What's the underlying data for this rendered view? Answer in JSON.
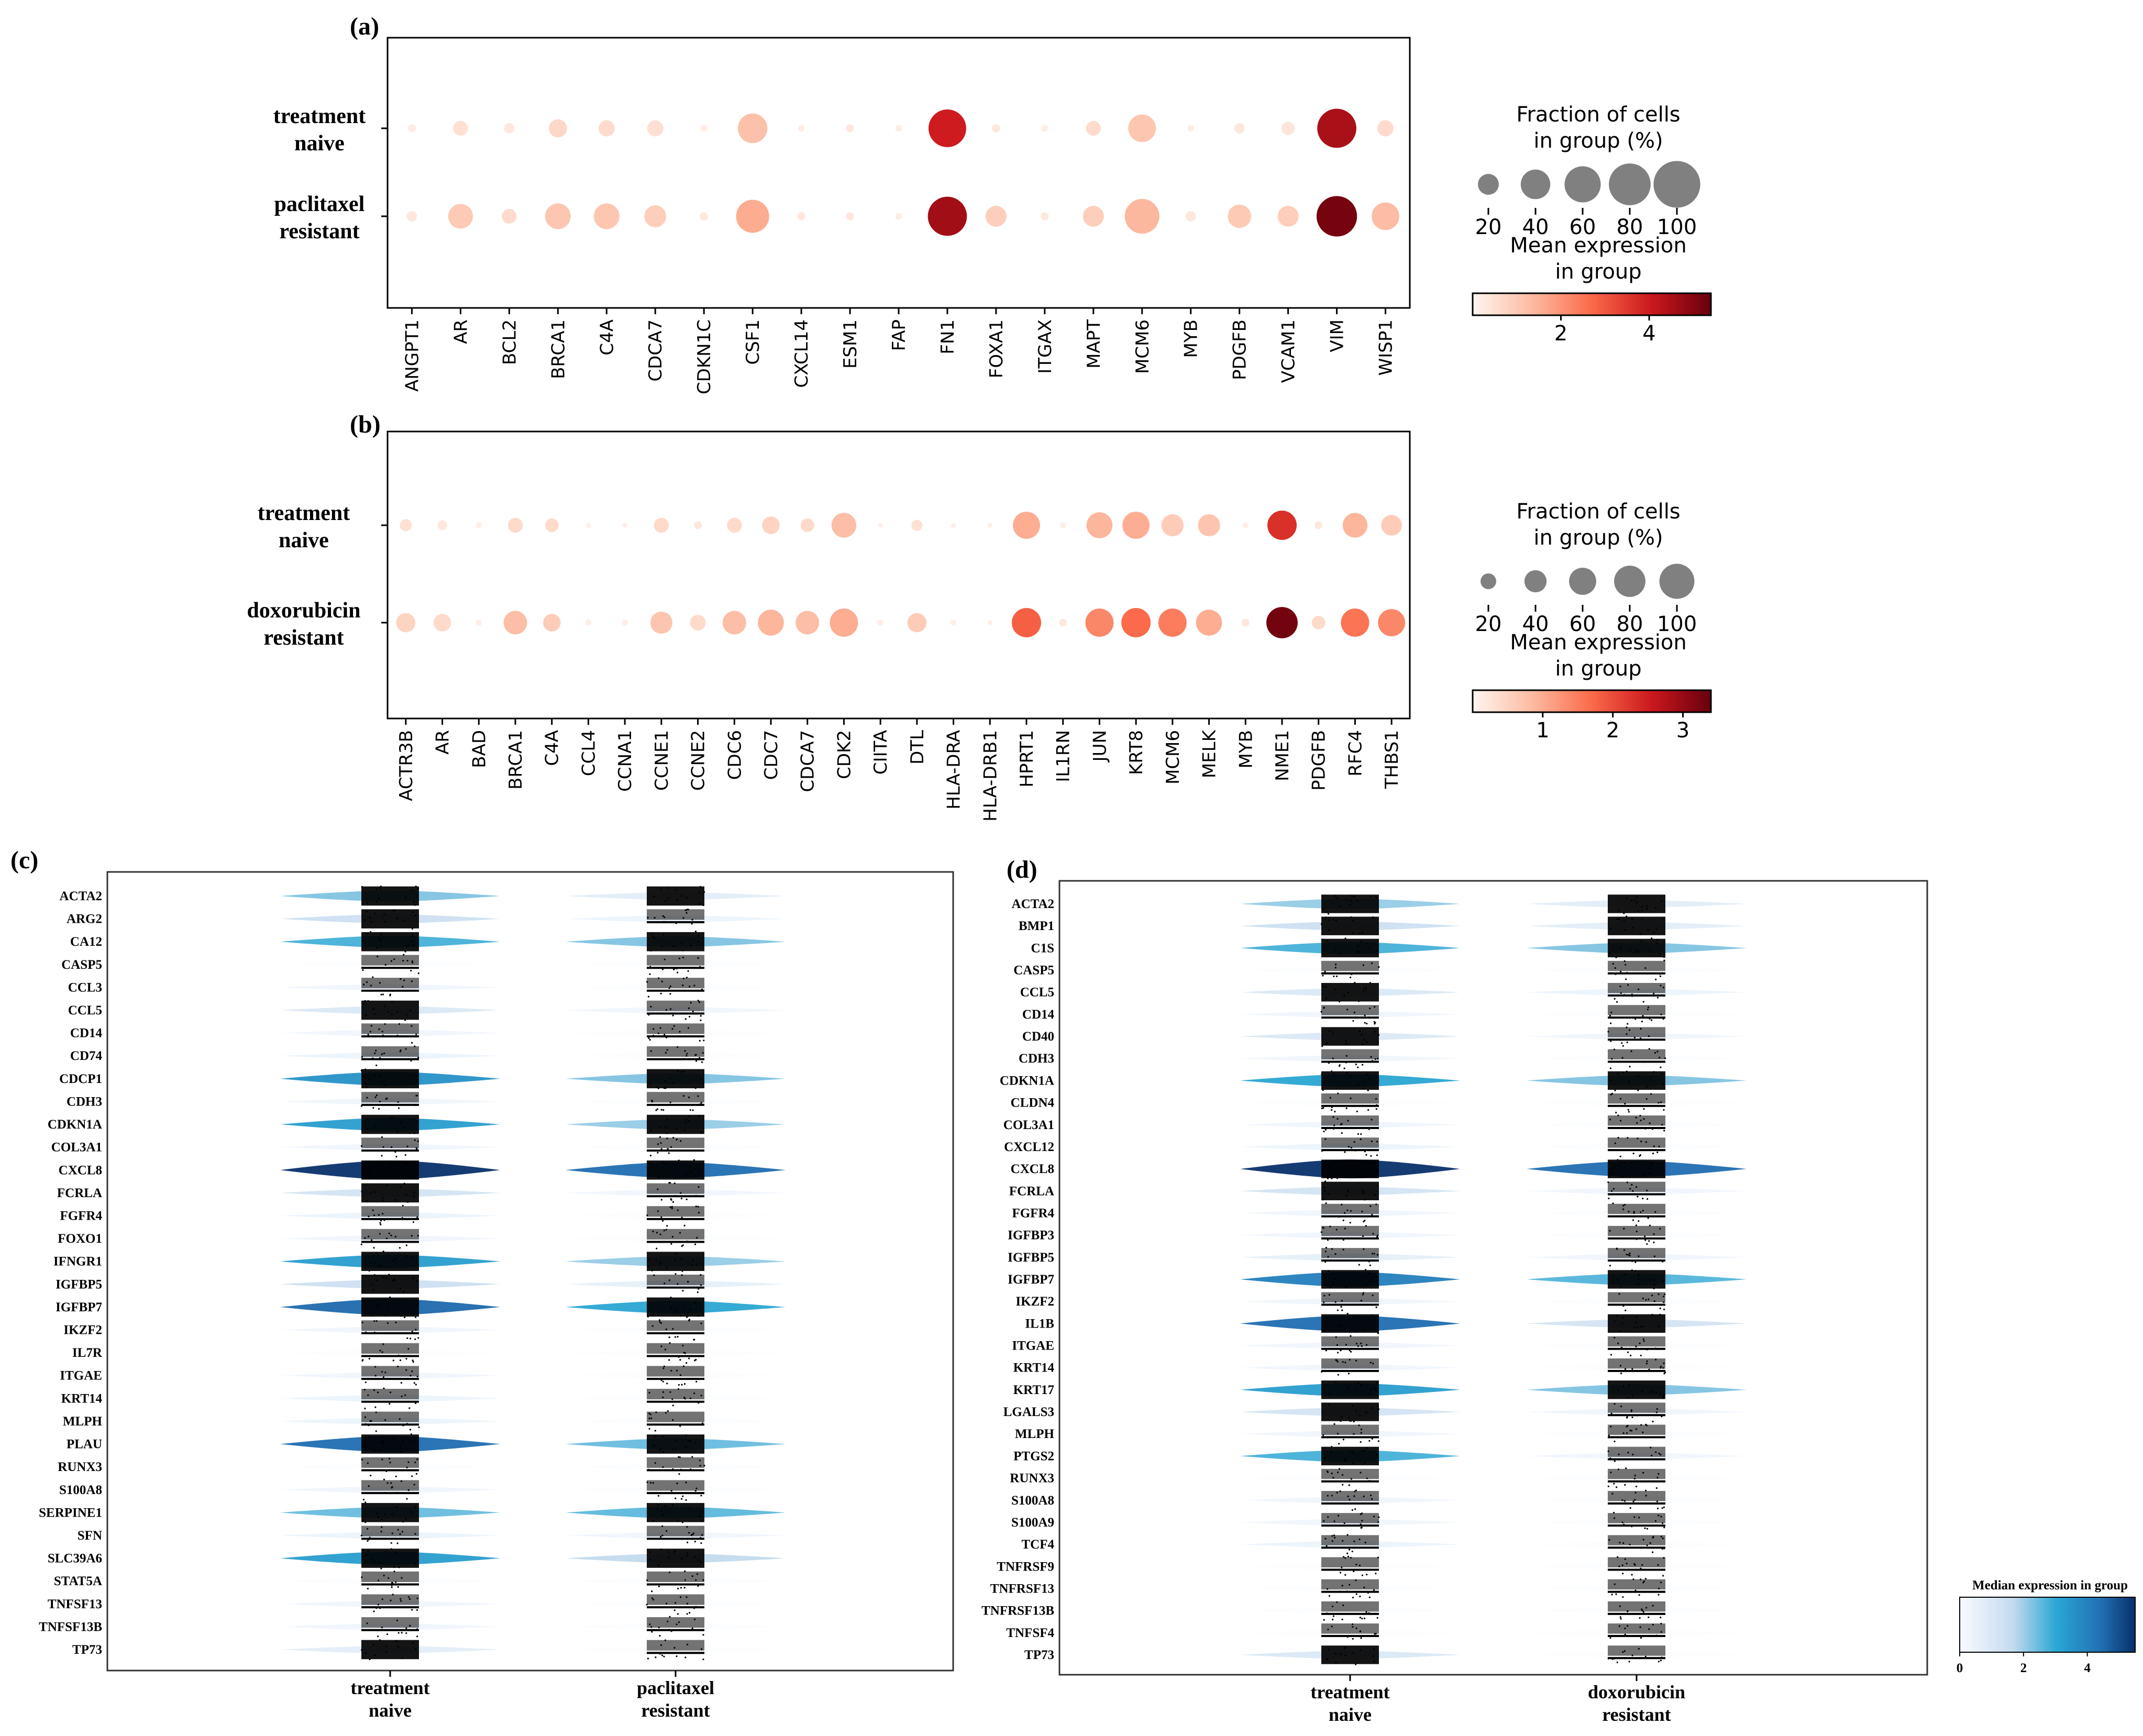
{
  "panels": {
    "a": "(a)",
    "b": "(b)",
    "c": "(c)",
    "d": "(d)"
  },
  "colors": {
    "reds": [
      "#fff5f0",
      "#fcbba1",
      "#fb6a4a",
      "#cb181d",
      "#67000d"
    ],
    "blues": [
      "#f7fbff",
      "#c6dbef",
      "#6baed6",
      "#2171b5",
      "#08306b"
    ],
    "size_gray": "#808080"
  },
  "chart_data": [
    {
      "id": "a",
      "type": "scatter",
      "subtype": "dotplot",
      "groups": [
        [
          "treatment",
          "naive"
        ],
        [
          "paclitaxel",
          "resistant"
        ]
      ],
      "genes": [
        "ANGPT1",
        "AR",
        "BCL2",
        "BRCA1",
        "C4A",
        "CDCA7",
        "CDKN1C",
        "CSF1",
        "CXCL14",
        "ESM1",
        "FAP",
        "FN1",
        "FOXA1",
        "ITGAX",
        "MAPT",
        "MCM6",
        "MYB",
        "PDGFB",
        "VCAM1",
        "VIM",
        "WISP1"
      ],
      "fraction_pct": [
        [
          3,
          10,
          5,
          15,
          12,
          12,
          2,
          40,
          2,
          3,
          2,
          65,
          3,
          2,
          10,
          35,
          2,
          5,
          8,
          70,
          12
        ],
        [
          5,
          28,
          10,
          30,
          30,
          22,
          3,
          50,
          3,
          3,
          2,
          70,
          20,
          3,
          20,
          55,
          5,
          25,
          20,
          75,
          35
        ]
      ],
      "mean_expr": [
        [
          0.2,
          0.5,
          0.3,
          0.7,
          0.6,
          0.5,
          0.2,
          1.2,
          0.2,
          0.3,
          0.2,
          4.0,
          0.3,
          0.2,
          0.6,
          1.1,
          0.2,
          0.3,
          0.4,
          4.5,
          0.6
        ],
        [
          0.3,
          1.0,
          0.6,
          1.1,
          1.1,
          0.9,
          0.3,
          1.6,
          0.3,
          0.3,
          0.2,
          4.6,
          0.9,
          0.3,
          0.9,
          1.4,
          0.3,
          1.0,
          0.9,
          5.2,
          1.3
        ]
      ],
      "legend_size_title": [
        "Fraction of cells",
        "in group (%)"
      ],
      "size_ticks": [
        "20",
        "40",
        "60",
        "80",
        "100"
      ],
      "legend_color_title": [
        "Mean expression",
        "in group"
      ],
      "color_ticks": [
        "2",
        "4"
      ],
      "color_tick_values": [
        2,
        4
      ],
      "color_range": [
        0,
        5.4
      ]
    },
    {
      "id": "b",
      "type": "scatter",
      "subtype": "dotplot",
      "groups": [
        [
          "treatment",
          "naive"
        ],
        [
          "doxorubicin",
          "resistant"
        ]
      ],
      "genes": [
        "ACTR3B",
        "AR",
        "BAD",
        "BRCA1",
        "C4A",
        "CCL4",
        "CCNA1",
        "CCNE1",
        "CCNE2",
        "CDC6",
        "CDC7",
        "CDCA7",
        "CDK2",
        "CIITA",
        "DTL",
        "HLA-DRA",
        "HLA-DRB1",
        "HPRT1",
        "IL1RN",
        "JUN",
        "KRT8",
        "MCM6",
        "MELK",
        "MYB",
        "NME1",
        "PDGFB",
        "RFC4",
        "THBS1"
      ],
      "fraction_pct": [
        [
          12,
          8,
          3,
          18,
          15,
          2,
          2,
          18,
          5,
          18,
          25,
          15,
          50,
          2,
          10,
          2,
          2,
          60,
          3,
          55,
          60,
          40,
          40,
          3,
          70,
          5,
          50,
          35
        ],
        [
          30,
          25,
          3,
          45,
          25,
          3,
          3,
          40,
          20,
          45,
          55,
          45,
          65,
          3,
          30,
          3,
          2,
          70,
          5,
          65,
          70,
          65,
          55,
          5,
          80,
          15,
          65,
          60
        ]
      ],
      "mean_expr": [
        [
          0.3,
          0.2,
          0.1,
          0.4,
          0.4,
          0.1,
          0.1,
          0.4,
          0.2,
          0.4,
          0.5,
          0.4,
          0.8,
          0.1,
          0.3,
          0.1,
          0.1,
          1.0,
          0.1,
          0.9,
          1.0,
          0.6,
          0.7,
          0.1,
          2.3,
          0.2,
          0.9,
          0.6
        ],
        [
          0.5,
          0.4,
          0.1,
          0.8,
          0.6,
          0.1,
          0.1,
          0.7,
          0.4,
          0.8,
          0.9,
          0.8,
          1.0,
          0.1,
          0.6,
          0.1,
          0.1,
          1.8,
          0.2,
          1.4,
          1.7,
          1.5,
          1.0,
          0.2,
          3.3,
          0.4,
          1.6,
          1.4
        ]
      ],
      "legend_size_title": [
        "Fraction of cells",
        "in group (%)"
      ],
      "size_ticks": [
        "20",
        "40",
        "60",
        "80",
        "100"
      ],
      "legend_color_title": [
        "Mean expression",
        "in group"
      ],
      "color_ticks": [
        "1",
        "2",
        "3"
      ],
      "color_tick_values": [
        1,
        2,
        3
      ],
      "color_range": [
        0,
        3.4
      ]
    },
    {
      "id": "c",
      "type": "stacked-violin",
      "groups": [
        [
          "treatment",
          "naive"
        ],
        [
          "paclitaxel",
          "resistant"
        ]
      ],
      "genes": [
        "ACTA2",
        "ARG2",
        "CA12",
        "CASP5",
        "CCL3",
        "CCL5",
        "CD14",
        "CD74",
        "CDCP1",
        "CDH3",
        "CDKN1A",
        "COL3A1",
        "CXCL8",
        "FCRLA",
        "FGFR4",
        "FOXO1",
        "IFNGR1",
        "IGFBP5",
        "IGFBP7",
        "IKZF2",
        "IL7R",
        "ITGAE",
        "KRT14",
        "MLPH",
        "PLAU",
        "RUNX3",
        "S100A8",
        "SERPINE1",
        "SFN",
        "SLC39A6",
        "STAT5A",
        "TNFSF13",
        "TNFSF13B",
        "TP73"
      ],
      "median_expr": [
        [
          2.0,
          1.2,
          2.5,
          0.1,
          0.2,
          0.8,
          0.2,
          0.3,
          3.3,
          0.2,
          3.0,
          0.2,
          5.5,
          1.0,
          0.3,
          0.2,
          3.0,
          1.2,
          4.3,
          0.2,
          0.1,
          0.2,
          0.3,
          0.3,
          4.2,
          0.1,
          0.2,
          2.2,
          0.3,
          3.0,
          0.1,
          0.2,
          0.2,
          0.6
        ],
        [
          0.6,
          0.3,
          2.0,
          0.1,
          0.1,
          0.2,
          0.1,
          0.1,
          2.0,
          0.1,
          1.8,
          0.1,
          4.2,
          0.2,
          0.1,
          0.1,
          1.8,
          0.5,
          2.8,
          0.1,
          0.1,
          0.1,
          0.1,
          0.1,
          2.2,
          0.1,
          0.1,
          2.3,
          0.2,
          1.4,
          0.1,
          0.1,
          0.1,
          0.1
        ]
      ]
    },
    {
      "id": "d",
      "type": "stacked-violin",
      "groups": [
        [
          "treatment",
          "naive"
        ],
        [
          "doxorubicin",
          "resistant"
        ]
      ],
      "genes": [
        "ACTA2",
        "BMP1",
        "C1S",
        "CASP5",
        "CCL5",
        "CD14",
        "CD40",
        "CDH3",
        "CDKN1A",
        "CLDN4",
        "COL3A1",
        "CXCL12",
        "CXCL8",
        "FCRLA",
        "FGFR4",
        "IGFBP3",
        "IGFBP5",
        "IGFBP7",
        "IKZF2",
        "IL1B",
        "ITGAE",
        "KRT14",
        "KRT17",
        "LGALS3",
        "MLPH",
        "PTGS2",
        "RUNX3",
        "S100A8",
        "S100A9",
        "TCF4",
        "TNFRSF9",
        "TNFRSF13",
        "TNFRSF13B",
        "TNFSF4",
        "TP73"
      ],
      "median_expr": [
        [
          1.8,
          1.2,
          2.5,
          0.1,
          0.8,
          0.2,
          0.8,
          0.2,
          2.8,
          0.1,
          0.2,
          0.3,
          5.5,
          1.0,
          0.2,
          0.2,
          0.5,
          3.8,
          0.2,
          4.2,
          0.2,
          0.2,
          3.0,
          1.0,
          0.2,
          2.5,
          0.1,
          0.2,
          0.2,
          0.3,
          0.1,
          0.1,
          0.1,
          0.1,
          0.8
        ],
        [
          0.6,
          0.6,
          2.0,
          0.1,
          0.3,
          0.1,
          0.2,
          0.1,
          2.0,
          0.1,
          0.1,
          0.1,
          4.2,
          0.2,
          0.1,
          0.1,
          0.2,
          2.4,
          0.1,
          1.0,
          0.1,
          0.1,
          2.0,
          0.2,
          0.1,
          0.2,
          0.1,
          0.1,
          0.1,
          0.1,
          0.1,
          0.1,
          0.1,
          0.1,
          0.1
        ]
      ],
      "legend_title": "Median expression  in group",
      "color_ticks": [
        "0",
        "2",
        "4"
      ],
      "color_tick_values": [
        0,
        2,
        4
      ],
      "color_range": [
        0,
        5.5
      ]
    }
  ]
}
